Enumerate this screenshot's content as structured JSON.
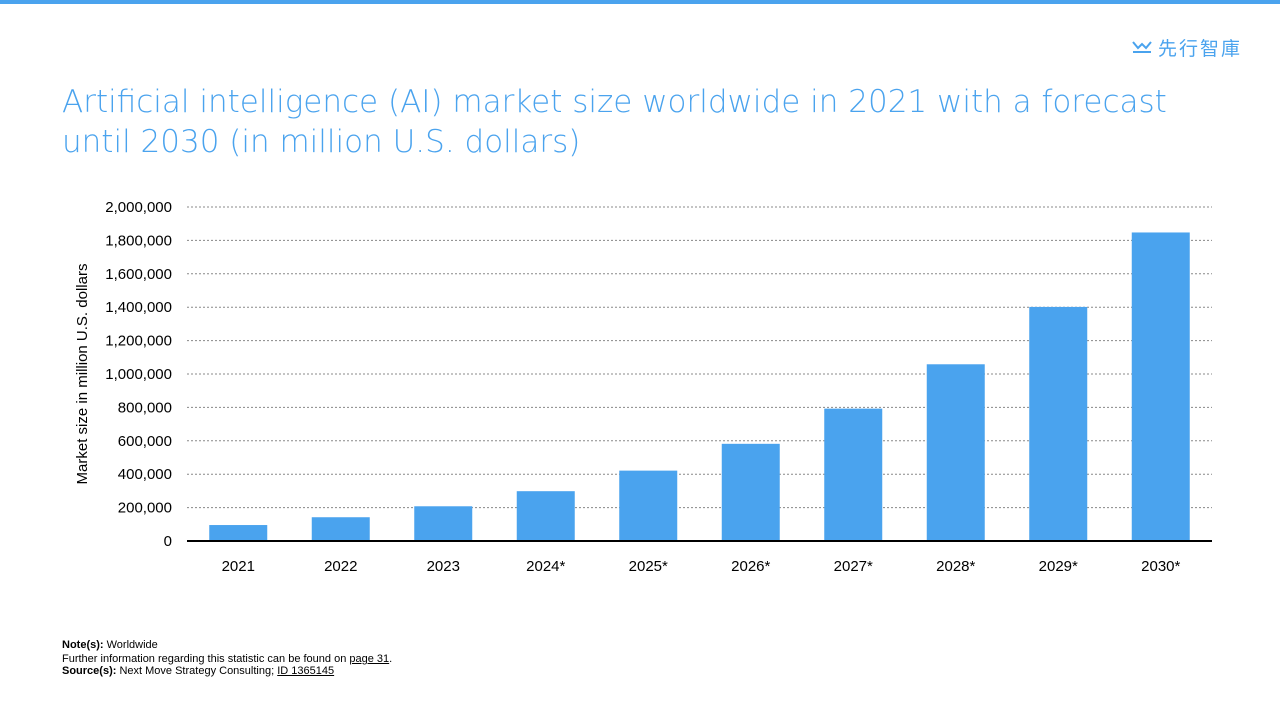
{
  "logo": {
    "text": "先行智庫"
  },
  "colors": {
    "accent": "#4aa3ee",
    "bar": "#4aa3ee"
  },
  "chart_data": {
    "type": "bar",
    "title": "Artificial intelligence (AI) market size worldwide in 2021 with a forecast until 2030 (in million U.S. dollars)",
    "xlabel": "",
    "ylabel": "Market size in million U.S. dollars",
    "categories": [
      "2021",
      "2022",
      "2023",
      "2024*",
      "2025*",
      "2026*",
      "2027*",
      "2028*",
      "2029*",
      "2030*"
    ],
    "values": [
      95600,
      142300,
      207900,
      298300,
      421400,
      581900,
      792700,
      1058200,
      1401600,
      1847500
    ],
    "ylim": [
      0,
      2000000
    ],
    "yticks": [
      0,
      200000,
      400000,
      600000,
      800000,
      1000000,
      1200000,
      1400000,
      1600000,
      1800000,
      2000000
    ],
    "ytick_labels": [
      "0",
      "200,000",
      "400,000",
      "600,000",
      "800,000",
      "1,000,000",
      "1,200,000",
      "1,400,000",
      "1,600,000",
      "1,800,000",
      "2,000,000"
    ],
    "grid": true
  },
  "notes": {
    "note_label": "Note(s):",
    "note_text": "Worldwide",
    "further_text": "Further information regarding this statistic can be found on",
    "page_link": "page 31",
    "source_label": "Source(s):",
    "source_text": "Next Move Strategy Consulting;",
    "id_link": "ID 1365145"
  }
}
